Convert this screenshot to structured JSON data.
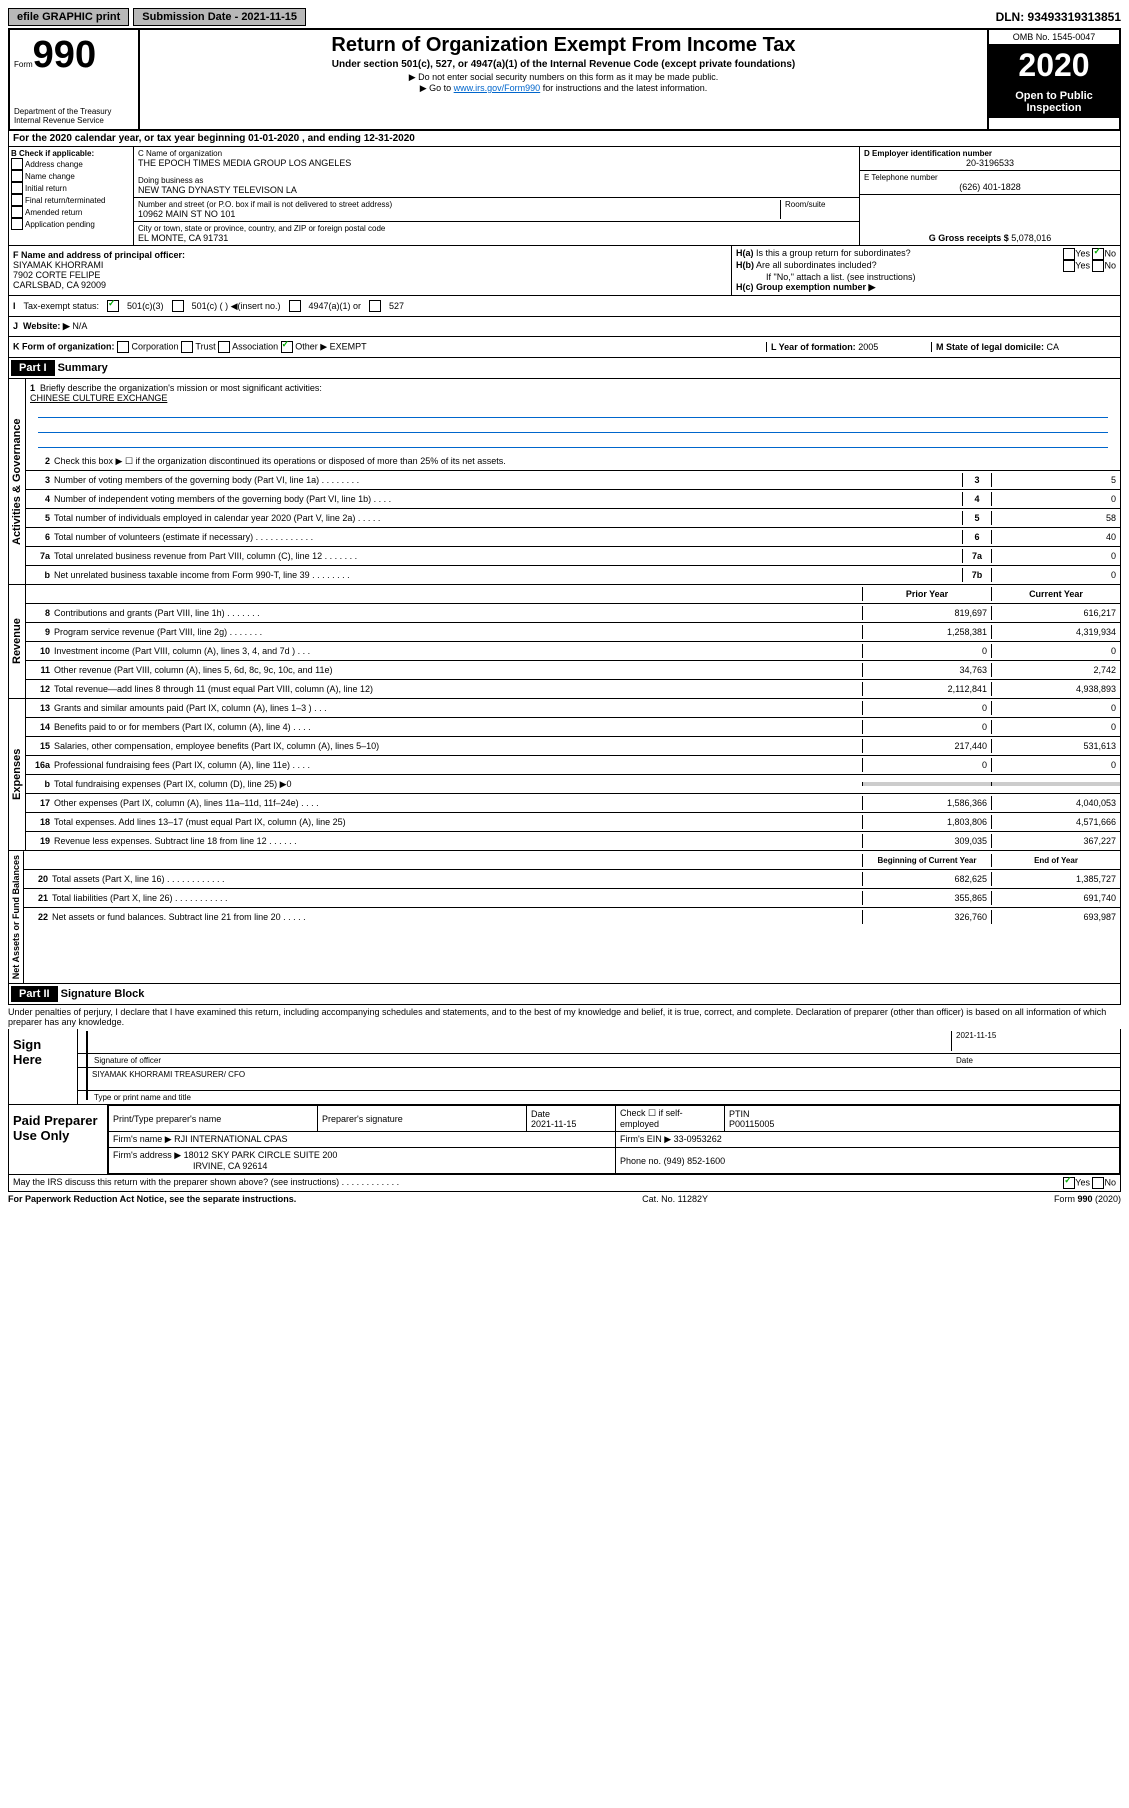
{
  "top": {
    "efile": "efile GRAPHIC print",
    "submission": "Submission Date - 2021-11-15",
    "dln": "DLN: 93493319313851"
  },
  "header": {
    "form_word": "Form",
    "form_num": "990",
    "dept": "Department of the Treasury",
    "irs": "Internal Revenue Service",
    "title": "Return of Organization Exempt From Income Tax",
    "subtitle": "Under section 501(c), 527, or 4947(a)(1) of the Internal Revenue Code (except private foundations)",
    "note1": "▶ Do not enter social security numbers on this form as it may be made public.",
    "note2_pre": "▶ Go to ",
    "note2_link": "www.irs.gov/Form990",
    "note2_post": " for instructions and the latest information.",
    "omb": "OMB No. 1545-0047",
    "year": "2020",
    "open": "Open to Public Inspection"
  },
  "a": "For the 2020 calendar year, or tax year beginning 01-01-2020    , and ending 12-31-2020",
  "b": {
    "label": "B Check if applicable:",
    "items": [
      "Address change",
      "Name change",
      "Initial return",
      "Final return/terminated",
      "Amended return",
      "Application pending"
    ]
  },
  "c": {
    "label": "C Name of organization",
    "name": "THE EPOCH TIMES MEDIA GROUP LOS ANGELES",
    "dba_label": "Doing business as",
    "dba": "NEW TANG DYNASTY TELEVISON LA",
    "addr_label": "Number and street (or P.O. box if mail is not delivered to street address)",
    "room": "Room/suite",
    "addr": "10962 MAIN ST NO 101",
    "city_label": "City or town, state or province, country, and ZIP or foreign postal code",
    "city": "EL MONTE, CA  91731"
  },
  "d": {
    "label": "D Employer identification number",
    "val": "20-3196533"
  },
  "e": {
    "label": "E Telephone number",
    "val": "(626) 401-1828"
  },
  "g": {
    "label": "G Gross receipts $",
    "val": "5,078,016"
  },
  "f": {
    "label": "F Name and address of principal officer:",
    "name": "SIYAMAK KHORRAMI",
    "addr1": "7902 CORTE FELIPE",
    "addr2": "CARLSBAD, CA  92009"
  },
  "h": {
    "a_label": "H(a)  Is this a group return for subordinates?",
    "b_label": "H(b)  Are all subordinates included?",
    "b_note": "If \"No,\" attach a list. (see instructions)",
    "c_label": "H(c)  Group exemption number ▶",
    "yes": "Yes",
    "no": "No"
  },
  "i": {
    "label": "Tax-exempt status:",
    "i501c3": "501(c)(3)",
    "i501c": "501(c) (  ) ◀(insert no.)",
    "i4947": "4947(a)(1) or",
    "i527": "527"
  },
  "j": {
    "label": "Website: ▶",
    "val": "N/A"
  },
  "k": {
    "label": "K Form of organization:",
    "corp": "Corporation",
    "trust": "Trust",
    "assoc": "Association",
    "other": "Other ▶",
    "other_val": "EXEMPT"
  },
  "l": {
    "label": "L Year of formation:",
    "val": "2005"
  },
  "m": {
    "label": "M State of legal domicile:",
    "val": "CA"
  },
  "part1": {
    "hdr": "Part I",
    "title": "Summary"
  },
  "vert": {
    "gov": "Activities & Governance",
    "rev": "Revenue",
    "exp": "Expenses",
    "net": "Net Assets or Fund Balances"
  },
  "s1": {
    "label": "Briefly describe the organization's mission or most significant activities:",
    "val": "CHINESE CULTURE EXCHANGE"
  },
  "s2": "Check this box ▶ ☐  if the organization discontinued its operations or disposed of more than 25% of its net assets.",
  "lines_gov": [
    {
      "n": "3",
      "t": "Number of voting members of the governing body (Part VI, line 1a)  .   .   .   .   .   .   .   .",
      "b": "3",
      "v": "5"
    },
    {
      "n": "4",
      "t": "Number of independent voting members of the governing body (Part VI, line 1b)  .   .   .   .",
      "b": "4",
      "v": "0"
    },
    {
      "n": "5",
      "t": "Total number of individuals employed in calendar year 2020 (Part V, line 2a)  .   .   .   .   .",
      "b": "5",
      "v": "58"
    },
    {
      "n": "6",
      "t": "Total number of volunteers (estimate if necessary)  .   .   .   .   .   .   .   .   .   .   .   .",
      "b": "6",
      "v": "40"
    },
    {
      "n": "7a",
      "t": "Total unrelated business revenue from Part VIII, column (C), line 12  .   .   .   .   .   .   .",
      "b": "7a",
      "v": "0"
    },
    {
      "n": "b",
      "t": "Net unrelated business taxable income from Form 990-T, line 39  .   .   .   .   .   .   .   .",
      "b": "7b",
      "v": "0"
    }
  ],
  "cols": {
    "prior": "Prior Year",
    "current": "Current Year",
    "begin": "Beginning of Current Year",
    "end": "End of Year"
  },
  "lines_rev": [
    {
      "n": "8",
      "t": "Contributions and grants (Part VIII, line 1h)  .   .   .   .   .   .   .",
      "p": "819,697",
      "c": "616,217"
    },
    {
      "n": "9",
      "t": "Program service revenue (Part VIII, line 2g)  .   .   .   .   .   .   .",
      "p": "1,258,381",
      "c": "4,319,934"
    },
    {
      "n": "10",
      "t": "Investment income (Part VIII, column (A), lines 3, 4, and 7d )  .   .   .",
      "p": "0",
      "c": "0"
    },
    {
      "n": "11",
      "t": "Other revenue (Part VIII, column (A), lines 5, 6d, 8c, 9c, 10c, and 11e)",
      "p": "34,763",
      "c": "2,742"
    },
    {
      "n": "12",
      "t": "Total revenue—add lines 8 through 11 (must equal Part VIII, column (A), line 12)",
      "p": "2,112,841",
      "c": "4,938,893"
    }
  ],
  "lines_exp": [
    {
      "n": "13",
      "t": "Grants and similar amounts paid (Part IX, column (A), lines 1–3 )  .   .   .",
      "p": "0",
      "c": "0"
    },
    {
      "n": "14",
      "t": "Benefits paid to or for members (Part IX, column (A), line 4)  .   .   .   .",
      "p": "0",
      "c": "0"
    },
    {
      "n": "15",
      "t": "Salaries, other compensation, employee benefits (Part IX, column (A), lines 5–10)",
      "p": "217,440",
      "c": "531,613"
    },
    {
      "n": "16a",
      "t": "Professional fundraising fees (Part IX, column (A), line 11e)  .   .   .   .",
      "p": "0",
      "c": "0"
    },
    {
      "n": "b",
      "t": "Total fundraising expenses (Part IX, column (D), line 25) ▶0",
      "p": "",
      "c": "",
      "shaded": true
    },
    {
      "n": "17",
      "t": "Other expenses (Part IX, column (A), lines 11a–11d, 11f–24e)  .   .   .   .",
      "p": "1,586,366",
      "c": "4,040,053"
    },
    {
      "n": "18",
      "t": "Total expenses. Add lines 13–17 (must equal Part IX, column (A), line 25)",
      "p": "1,803,806",
      "c": "4,571,666"
    },
    {
      "n": "19",
      "t": "Revenue less expenses. Subtract line 18 from line 12  .   .   .   .   .   .",
      "p": "309,035",
      "c": "367,227"
    }
  ],
  "lines_net": [
    {
      "n": "20",
      "t": "Total assets (Part X, line 16)  .   .   .   .   .   .   .   .   .   .   .   .",
      "p": "682,625",
      "c": "1,385,727"
    },
    {
      "n": "21",
      "t": "Total liabilities (Part X, line 26)  .   .   .   .   .   .   .   .   .   .   .",
      "p": "355,865",
      "c": "691,740"
    },
    {
      "n": "22",
      "t": "Net assets or fund balances. Subtract line 21 from line 20  .   .   .   .   .",
      "p": "326,760",
      "c": "693,987"
    }
  ],
  "part2": {
    "hdr": "Part II",
    "title": "Signature Block"
  },
  "perjury": "Under penalties of perjury, I declare that I have examined this return, including accompanying schedules and statements, and to the best of my knowledge and belief, it is true, correct, and complete. Declaration of preparer (other than officer) is based on all information of which preparer has any knowledge.",
  "sign": {
    "here": "Sign Here",
    "sig_officer": "Signature of officer",
    "date": "Date",
    "date_val": "2021-11-15",
    "name": "SIYAMAK KHORRAMI  TREASURER/ CFO",
    "type_name": "Type or print name and title"
  },
  "paid": {
    "label": "Paid Preparer Use Only",
    "print_name": "Print/Type preparer's name",
    "prep_sig": "Preparer's signature",
    "date_lbl": "Date",
    "date_val": "2021-11-15",
    "check_lbl": "Check ☐ if self-employed",
    "ptin_lbl": "PTIN",
    "ptin": "P00115005",
    "firm_name_lbl": "Firm's name    ▶",
    "firm_name": "RJI INTERNATIONAL CPAS",
    "firm_ein_lbl": "Firm's EIN ▶",
    "firm_ein": "33-0953262",
    "firm_addr_lbl": "Firm's address ▶",
    "firm_addr1": "18012 SKY PARK CIRCLE SUITE 200",
    "firm_addr2": "IRVINE, CA  92614",
    "phone_lbl": "Phone no.",
    "phone": "(949) 852-1600"
  },
  "discuss": "May the IRS discuss this return with the preparer shown above? (see instructions)  .   .   .   .   .   .   .   .   .   .   .   .",
  "footer": {
    "pra": "For Paperwork Reduction Act Notice, see the separate instructions.",
    "cat": "Cat. No. 11282Y",
    "form": "Form 990 (2020)"
  },
  "yn": {
    "yes": "Yes",
    "no": "No"
  }
}
